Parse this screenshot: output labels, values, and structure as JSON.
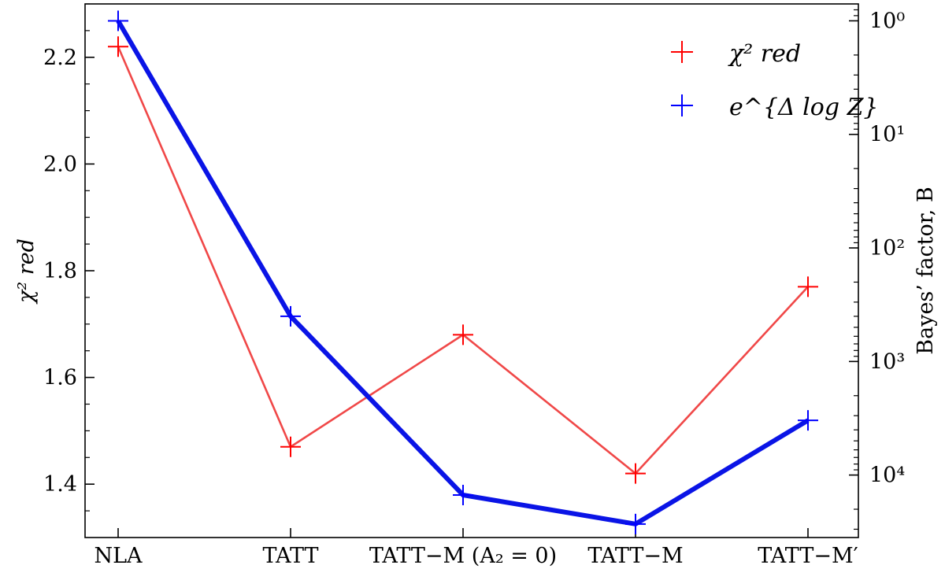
{
  "chart_data": {
    "type": "line",
    "categories": [
      "NLA",
      "TATT",
      "TATT−M (A₂ = 0)",
      "TATT−M",
      "TATT−M′"
    ],
    "series": [
      {
        "name": "χ² red",
        "axis": "left",
        "color": "#f04848",
        "marker_color": "#ff0000",
        "values": [
          2.22,
          1.47,
          1.68,
          1.42,
          1.77
        ]
      },
      {
        "name": "e^{Δ log Z}",
        "axis": "right",
        "color": "#0a14e6",
        "marker_color": "#0000ff",
        "values": [
          1,
          400,
          15000,
          27000,
          3300
        ]
      }
    ],
    "ylabel": "χ² red",
    "ylabel_right": "Bayes’ factor, B",
    "ylim": [
      1.3,
      2.3
    ],
    "yticks": [
      1.4,
      1.6,
      1.8,
      2.0,
      2.2
    ],
    "ytick_labels": [
      "1.4",
      "1.6",
      "1.8",
      "2.0",
      "2.2"
    ],
    "y2_scale": "log",
    "y2_inverted": true,
    "y2lim": [
      0.71,
      35500
    ],
    "y2ticks": [
      1,
      10,
      100,
      1000,
      10000
    ],
    "y2tick_labels": [
      "10⁰",
      "10¹",
      "10²",
      "10³",
      "10⁴"
    ],
    "legend_position": "top-right",
    "grid": false
  }
}
